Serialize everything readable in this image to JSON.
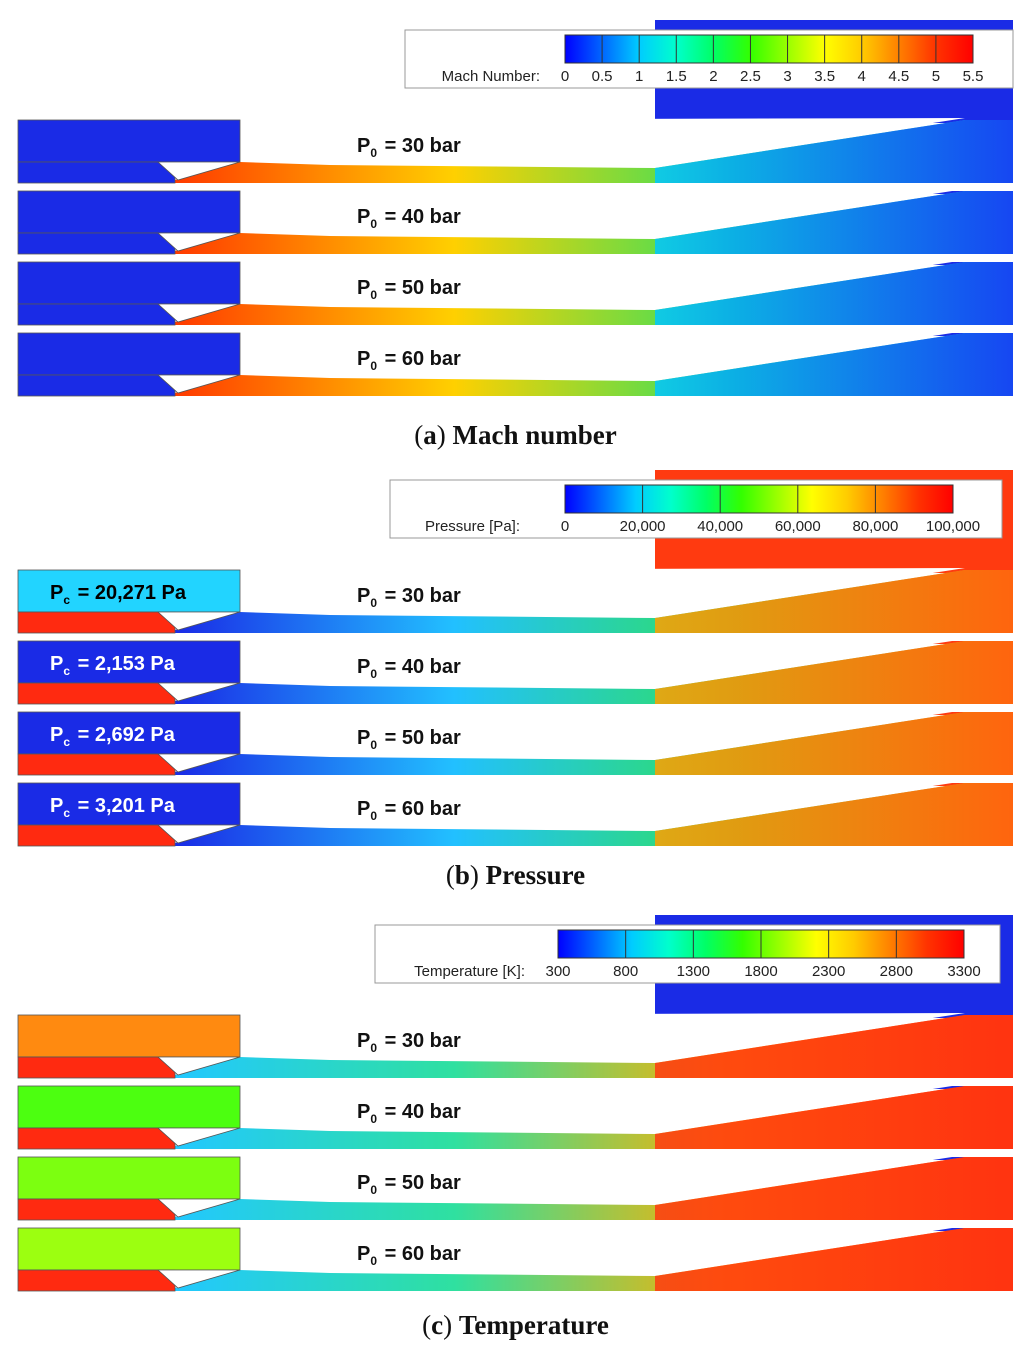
{
  "panels": [
    {
      "id": "mach",
      "caption_letter": "a",
      "caption_title": "Mach number",
      "colorbar": {
        "label": "Mach Number:",
        "ticks": [
          "0",
          "0.5",
          "1",
          "1.5",
          "2",
          "2.5",
          "3",
          "3.5",
          "4",
          "4.5",
          "5",
          "5.5"
        ]
      },
      "chamber_labels": [],
      "run_labels": [
        "= 30 bar",
        "= 40 bar",
        "= 50 bar",
        "= 60 bar"
      ],
      "run_symbol": "P",
      "run_subscript": "0",
      "colors": {
        "bg": "#1a2be6",
        "chamber": [
          "#1a2be6",
          "#1a2be6",
          "#1a2be6",
          "#1a2be6"
        ],
        "inlet": "#1a2be6",
        "jet": [
          "#ff3a00",
          "#ffd000",
          "#2fe060",
          "#00c8ff"
        ],
        "diffuser": "#1a30f0"
      }
    },
    {
      "id": "pressure",
      "caption_letter": "b",
      "caption_title": "Pressure",
      "colorbar": {
        "label": "Pressure [Pa]:",
        "ticks": [
          "0",
          "20,000",
          "40,000",
          "60,000",
          "80,000",
          "100,000"
        ]
      },
      "chamber_labels": [
        "= 20,271 Pa",
        "= 2,153 Pa",
        "= 2,692 Pa",
        "= 3,201 Pa"
      ],
      "chamber_symbol": "P",
      "chamber_subscript": "c",
      "run_labels": [
        "= 30 bar",
        "= 40 bar",
        "= 50 bar",
        "= 60 bar"
      ],
      "run_symbol": "P",
      "run_subscript": "0",
      "colors": {
        "bg": "#ff3a10",
        "chamber": [
          "#22d4ff",
          "#1a2be6",
          "#1a2be6",
          "#1a2be6"
        ],
        "inlet": "#ff2a10",
        "jet": [
          "#1a2be6",
          "#22c0ff",
          "#2fe060",
          "#ffa000"
        ],
        "diffuser": "#ff5a10"
      }
    },
    {
      "id": "temperature",
      "caption_letter": "c",
      "caption_title": "Temperature",
      "colorbar": {
        "label": "Temperature [K]:",
        "ticks": [
          "300",
          "800",
          "1300",
          "1800",
          "2300",
          "2800",
          "3300"
        ]
      },
      "chamber_labels": [],
      "run_labels": [
        "= 30 bar",
        "= 40 bar",
        "= 50 bar",
        "= 60 bar"
      ],
      "run_symbol": "P",
      "run_subscript": "0",
      "colors": {
        "bg": "#1a2be6",
        "chamber": [
          "#ff8a10",
          "#4cff10",
          "#7cff10",
          "#9cff10"
        ],
        "inlet": "#ff2a10",
        "jet": [
          "#22c8ff",
          "#2fe0a0",
          "#ffb000",
          "#ff3a10"
        ],
        "diffuser": "#ff3210"
      }
    }
  ],
  "colorbar_gradient": [
    "#0000ff",
    "#0066ff",
    "#00ccff",
    "#00ffcc",
    "#00ff66",
    "#33ff00",
    "#99ff00",
    "#ffff00",
    "#ffcc00",
    "#ff8000",
    "#ff3300",
    "#ff0000"
  ]
}
